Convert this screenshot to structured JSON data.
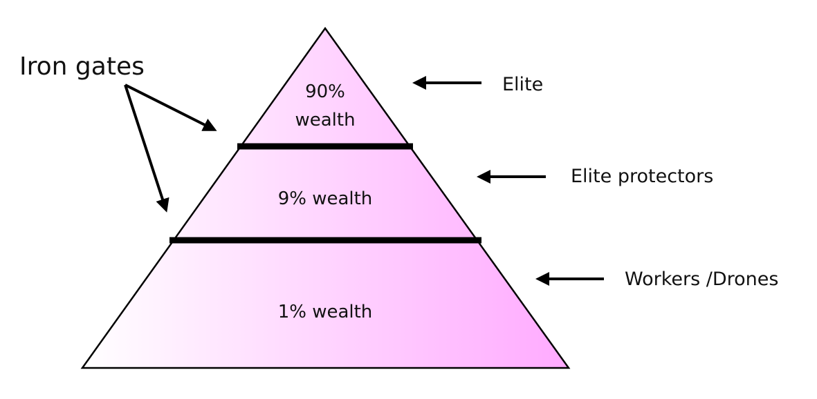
{
  "diagram": {
    "fill_light": "#ffffff",
    "fill_dark": "#ffaaff",
    "stroke": "#000000",
    "tiers": [
      {
        "line1": "90%",
        "line2": "wealth"
      },
      {
        "text": "9% wealth"
      },
      {
        "text": "1% wealth"
      }
    ],
    "side_labels": [
      "Elite",
      "Elite protectors",
      "Workers /Drones"
    ],
    "gates_label": "Iron gates"
  }
}
